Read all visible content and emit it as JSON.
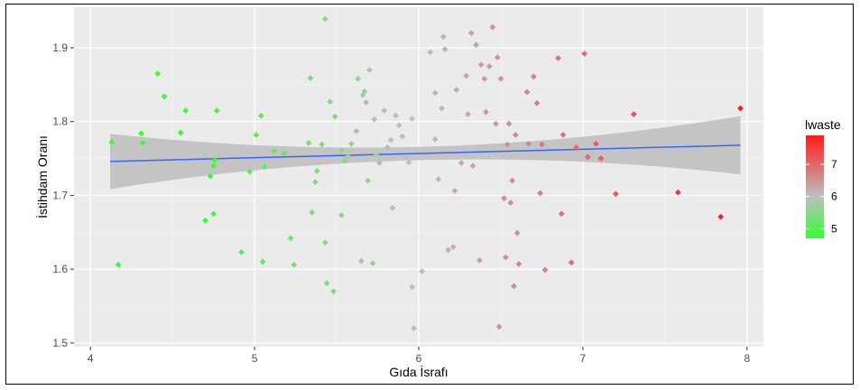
{
  "chart_data": {
    "type": "scatter",
    "title": "",
    "xlabel": "Gıda İsrafı",
    "ylabel": "İstihdam Oranı",
    "xlim": [
      3.9,
      8.1
    ],
    "ylim": [
      1.495,
      1.955
    ],
    "x_ticks": [
      4,
      5,
      6,
      7,
      8
    ],
    "x_tick_labels": [
      "4",
      "5",
      "6",
      "7",
      "8"
    ],
    "y_ticks": [
      1.5,
      1.6,
      1.7,
      1.8,
      1.9
    ],
    "y_tick_labels": [
      "1.5",
      "1.6",
      "1.7",
      "1.8",
      "1.9"
    ],
    "grid": true,
    "legend": {
      "title": "lwaste",
      "placement": "right",
      "type": "gradient",
      "min": 4.7,
      "max": 7.9,
      "labels": [
        "5",
        "6",
        "7"
      ],
      "label_values": [
        5,
        6,
        7
      ],
      "colors": {
        "low": "#33ff33",
        "mid": "#bebebe",
        "high": "#ff1a1a"
      }
    },
    "trend": {
      "x": [
        4.12,
        7.96
      ],
      "y": [
        1.746,
        1.768
      ],
      "ci_low": [
        1.709,
        1.729
      ],
      "ci_high": [
        1.784,
        1.808
      ],
      "line_color": "#3366ff",
      "band_color": "#bdbdbd"
    },
    "points": [
      [
        4.13,
        1.772
      ],
      [
        4.17,
        1.606
      ],
      [
        4.31,
        1.784
      ],
      [
        4.32,
        1.771
      ],
      [
        4.41,
        1.865
      ],
      [
        4.45,
        1.834
      ],
      [
        4.55,
        1.785
      ],
      [
        4.58,
        1.815
      ],
      [
        4.7,
        1.666
      ],
      [
        4.73,
        1.726
      ],
      [
        4.75,
        1.675
      ],
      [
        4.75,
        1.74
      ],
      [
        4.76,
        1.748
      ],
      [
        4.77,
        1.815
      ],
      [
        4.92,
        1.623
      ],
      [
        4.97,
        1.732
      ],
      [
        5.01,
        1.782
      ],
      [
        5.04,
        1.808
      ],
      [
        5.05,
        1.61
      ],
      [
        5.06,
        1.739
      ],
      [
        5.12,
        1.76
      ],
      [
        5.18,
        1.757
      ],
      [
        5.22,
        1.642
      ],
      [
        5.24,
        1.606
      ],
      [
        5.33,
        1.771
      ],
      [
        5.34,
        1.859
      ],
      [
        5.35,
        1.677
      ],
      [
        5.37,
        1.718
      ],
      [
        5.38,
        1.733
      ],
      [
        5.41,
        1.769
      ],
      [
        5.43,
        1.939
      ],
      [
        5.43,
        1.636
      ],
      [
        5.44,
        1.581
      ],
      [
        5.46,
        1.827
      ],
      [
        5.48,
        1.57
      ],
      [
        5.49,
        1.807
      ],
      [
        5.53,
        1.673
      ],
      [
        5.53,
        1.761
      ],
      [
        5.55,
        1.747
      ],
      [
        5.57,
        1.753
      ],
      [
        5.59,
        1.77
      ],
      [
        5.62,
        1.787
      ],
      [
        5.63,
        1.858
      ],
      [
        5.65,
        1.611
      ],
      [
        5.66,
        1.836
      ],
      [
        5.67,
        1.841
      ],
      [
        5.68,
        1.826
      ],
      [
        5.69,
        1.72
      ],
      [
        5.7,
        1.87
      ],
      [
        5.72,
        1.608
      ],
      [
        5.73,
        1.803
      ],
      [
        5.74,
        1.755
      ],
      [
        5.76,
        1.744
      ],
      [
        5.79,
        1.815
      ],
      [
        5.81,
        1.765
      ],
      [
        5.83,
        1.775
      ],
      [
        5.84,
        1.683
      ],
      [
        5.86,
        1.808
      ],
      [
        5.88,
        1.795
      ],
      [
        5.9,
        1.78
      ],
      [
        5.92,
        1.752
      ],
      [
        5.94,
        1.745
      ],
      [
        5.96,
        1.804
      ],
      [
        5.96,
        1.576
      ],
      [
        5.97,
        1.52
      ],
      [
        6.02,
        1.597
      ],
      [
        6.07,
        1.894
      ],
      [
        6.1,
        1.776
      ],
      [
        6.1,
        1.839
      ],
      [
        6.12,
        1.722
      ],
      [
        6.14,
        1.818
      ],
      [
        6.15,
        1.915
      ],
      [
        6.16,
        1.898
      ],
      [
        6.18,
        1.626
      ],
      [
        6.21,
        1.63
      ],
      [
        6.22,
        1.706
      ],
      [
        6.23,
        1.843
      ],
      [
        6.26,
        1.744
      ],
      [
        6.29,
        1.862
      ],
      [
        6.3,
        1.81
      ],
      [
        6.32,
        1.92
      ],
      [
        6.33,
        1.74
      ],
      [
        6.35,
        1.904
      ],
      [
        6.37,
        1.612
      ],
      [
        6.38,
        1.877
      ],
      [
        6.4,
        1.858
      ],
      [
        6.41,
        1.813
      ],
      [
        6.43,
        1.875
      ],
      [
        6.45,
        1.928
      ],
      [
        6.47,
        1.797
      ],
      [
        6.48,
        1.887
      ],
      [
        6.49,
        1.522
      ],
      [
        6.5,
        1.858
      ],
      [
        6.52,
        1.696
      ],
      [
        6.53,
        1.616
      ],
      [
        6.54,
        1.769
      ],
      [
        6.55,
        1.797
      ],
      [
        6.56,
        1.69
      ],
      [
        6.57,
        1.72
      ],
      [
        6.58,
        1.577
      ],
      [
        6.59,
        1.782
      ],
      [
        6.6,
        1.649
      ],
      [
        6.61,
        1.607
      ],
      [
        6.66,
        1.84
      ],
      [
        6.67,
        1.77
      ],
      [
        6.7,
        1.861
      ],
      [
        6.72,
        1.825
      ],
      [
        6.74,
        1.703
      ],
      [
        6.75,
        1.769
      ],
      [
        6.77,
        1.599
      ],
      [
        6.85,
        1.886
      ],
      [
        6.87,
        1.675
      ],
      [
        6.88,
        1.782
      ],
      [
        6.93,
        1.609
      ],
      [
        6.96,
        1.765
      ],
      [
        7.01,
        1.892
      ],
      [
        7.03,
        1.752
      ],
      [
        7.08,
        1.77
      ],
      [
        7.11,
        1.75
      ],
      [
        7.2,
        1.702
      ],
      [
        7.31,
        1.81
      ],
      [
        7.58,
        1.704
      ],
      [
        7.84,
        1.671
      ],
      [
        7.96,
        1.818
      ]
    ]
  }
}
